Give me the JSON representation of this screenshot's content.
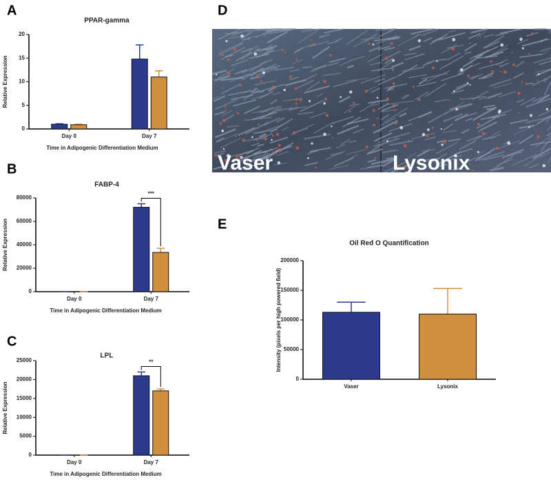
{
  "panel_labels": [
    "A",
    "B",
    "C",
    "D",
    "E"
  ],
  "micrograph": {
    "labels": [
      "Vaser",
      "Lysonix"
    ]
  },
  "chart_data": [
    {
      "type": "bar",
      "title": "PPAR-gamma",
      "y_label": "Relative Expression",
      "x_label": "Time in Adipogenic Differentiation Medium",
      "categories": [
        "Day 0",
        "Day 7"
      ],
      "series": [
        {
          "color": "#2b3a8c",
          "values": [
            1,
            14.8
          ],
          "errors": [
            0.1,
            3
          ]
        },
        {
          "color": "#d08f3f",
          "values": [
            0.9,
            11
          ],
          "errors": [
            0.1,
            1.3
          ]
        }
      ],
      "ylim": [
        0,
        20
      ],
      "yticks": [
        0,
        5,
        10,
        15,
        20
      ]
    },
    {
      "type": "bar",
      "title": "FABP-4",
      "y_label": "Relative Expression",
      "x_label": "Time in Adipogenic Differentiation Medium",
      "annotation": "***",
      "categories": [
        "Day 0",
        "Day 7"
      ],
      "series": [
        {
          "color": "#2b3a8c",
          "values": [
            0,
            72000
          ],
          "errors": [
            0,
            3000
          ]
        },
        {
          "color": "#d08f3f",
          "values": [
            0,
            33500
          ],
          "errors": [
            0,
            3500
          ]
        }
      ],
      "ylim": [
        0,
        80000
      ],
      "yticks": [
        0,
        20000,
        40000,
        60000,
        80000
      ]
    },
    {
      "type": "bar",
      "title": "LPL",
      "y_label": "Relative Expression",
      "x_label": "Time in Adipogenic Differentiation Medium",
      "annotation": "**",
      "categories": [
        "Day 0",
        "Day 7"
      ],
      "series": [
        {
          "color": "#2b3a8c",
          "values": [
            0,
            21000
          ],
          "errors": [
            0,
            1000
          ]
        },
        {
          "color": "#d08f3f",
          "values": [
            0,
            17000
          ],
          "errors": [
            0,
            500
          ]
        }
      ],
      "ylim": [
        0,
        25000
      ],
      "yticks": [
        0,
        5000,
        10000,
        15000,
        20000,
        25000
      ]
    },
    {
      "type": "bar",
      "title": "Oil Red O Quantification",
      "y_label": "Intensity (pixels per high powered field)",
      "categories": [
        "Vaser",
        "Lysonix"
      ],
      "values": [
        113000,
        110000
      ],
      "errors": [
        17000,
        43000
      ],
      "colors": [
        "#2b3a8c",
        "#d08f3f"
      ],
      "ylim": [
        0,
        200000
      ],
      "yticks": [
        0,
        50000,
        100000,
        150000,
        200000
      ]
    }
  ]
}
